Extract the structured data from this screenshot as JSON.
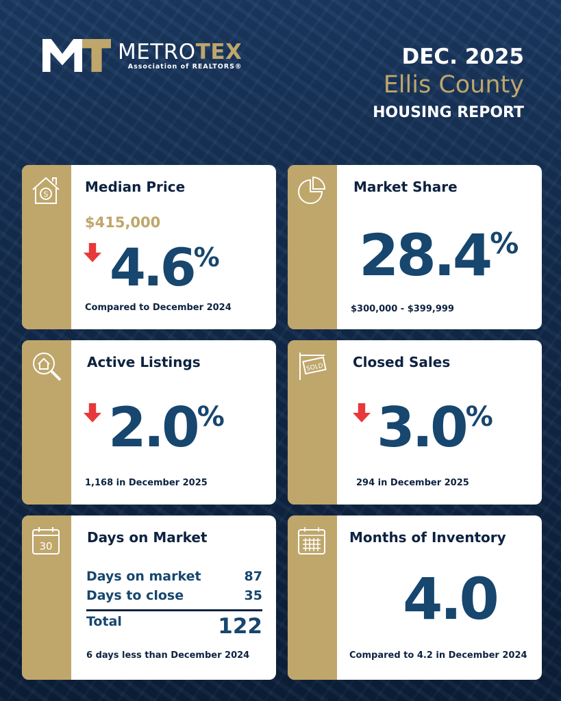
{
  "brand": {
    "name_a": "METRO",
    "name_b": "TEX",
    "subtitle": "Association of REALTORS®"
  },
  "header": {
    "date": "DEC. 2025",
    "county": "Ellis County",
    "report": "HOUSING REPORT"
  },
  "colors": {
    "navy": "#0d2240",
    "gold": "#bfa66b",
    "blue": "#17466e",
    "down": "#e8383a"
  },
  "median_price": {
    "title": "Median Price",
    "icon": "house-dollar-icon",
    "price": "$415,000",
    "direction": "down",
    "change": "4.6",
    "unit": "%",
    "note": "Compared to December 2024"
  },
  "market_share": {
    "title": "Market Share",
    "icon": "pie-chart-icon",
    "value": "28.4",
    "unit": "%",
    "note": "$300,000 - $399,999"
  },
  "active_listings": {
    "title": "Active Listings",
    "icon": "house-search-icon",
    "direction": "down",
    "change": "2.0",
    "unit": "%",
    "note": "1,168 in December 2025"
  },
  "closed_sales": {
    "title": "Closed Sales",
    "icon": "sold-sign-icon",
    "direction": "down",
    "change": "3.0",
    "unit": "%",
    "note": "294 in December 2025"
  },
  "days_on_market": {
    "title": "Days on Market",
    "icon": "calendar-30-icon",
    "calendar_text": "30",
    "rows": [
      {
        "label": "Days on market",
        "value": "87"
      },
      {
        "label": "Days to close",
        "value": "35"
      }
    ],
    "total_label": "Total",
    "total_value": "122",
    "note": "6 days less than December 2024"
  },
  "months_inventory": {
    "title": "Months of Inventory",
    "icon": "calendar-grid-icon",
    "value": "4.0",
    "note": "Compared to 4.2 in December 2024"
  }
}
